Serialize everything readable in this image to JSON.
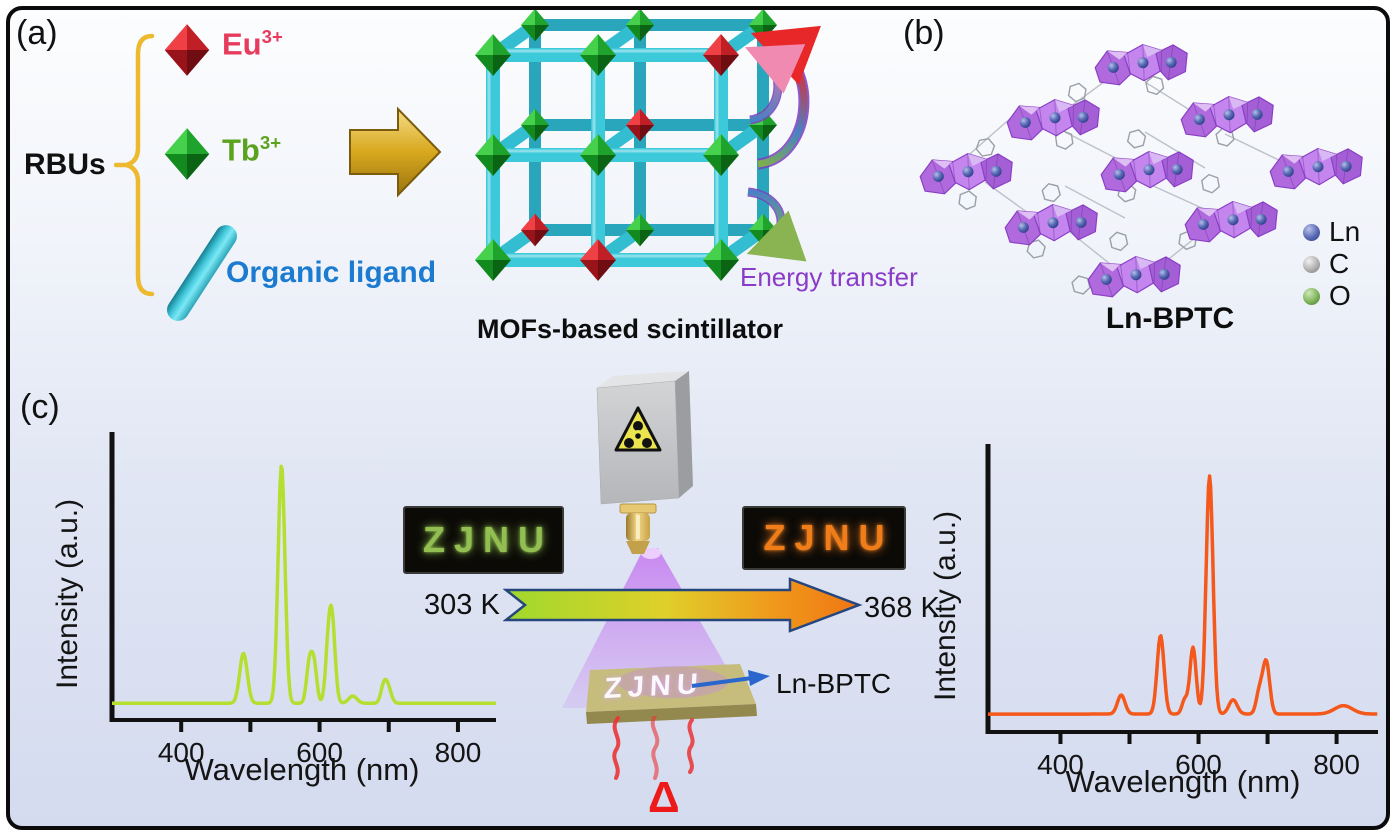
{
  "panels": {
    "a": {
      "label": "(a)",
      "rbus": "RBUs",
      "items": [
        {
          "symbol": "Eu",
          "charge": "3+",
          "color": "#e73b5e"
        },
        {
          "symbol": "Tb",
          "charge": "3+",
          "color": "#5ba31f"
        },
        {
          "label": "Organic ligand",
          "color": "#1a7bd0"
        }
      ],
      "scintillator_caption": "MOFs-based scintillator",
      "energy_transfer": "Energy transfer",
      "energy_transfer_color": "#8a3cc8"
    },
    "b": {
      "label": "(b)",
      "caption": "Ln-BPTC",
      "legend": [
        {
          "name": "Ln",
          "color": "#5868b4"
        },
        {
          "name": "C",
          "color": "#b9b9b9"
        },
        {
          "name": "O",
          "color": "#6fae4a"
        }
      ]
    },
    "c": {
      "label": "(c)",
      "temp_start": "303 K",
      "temp_end": "368 K",
      "photo_left": "ZJNU",
      "photo_left_color": "#93be52",
      "photo_right": "ZJNU",
      "photo_right_color": "#f07d18",
      "plate_text": "ZJNU",
      "sample_label": "Ln-BPTC",
      "heat_symbol": "Δ"
    }
  },
  "chart_data": [
    {
      "type": "line",
      "temperature": "303 K",
      "xlabel": "Wavelength (nm)",
      "ylabel": "Intensity (a.u.)",
      "xlim": [
        300,
        855
      ],
      "x_ticks_labeled": [
        400,
        600,
        800
      ],
      "x_ticks_all": [
        400,
        500,
        600,
        700,
        800
      ],
      "grid": false,
      "color": "#b5df30",
      "baseline": 0.02,
      "peaks": [
        {
          "center": 490,
          "height": 0.21,
          "width": 5.5
        },
        {
          "center": 545,
          "height": 1.0,
          "width": 5
        },
        {
          "center": 585,
          "height": 0.16,
          "width": 4
        },
        {
          "center": 592,
          "height": 0.16,
          "width": 4
        },
        {
          "center": 612,
          "height": 0.17,
          "width": 4
        },
        {
          "center": 618,
          "height": 0.34,
          "width": 4.5
        },
        {
          "center": 648,
          "height": 0.03,
          "width": 6
        },
        {
          "center": 692,
          "height": 0.05,
          "width": 4
        },
        {
          "center": 698,
          "height": 0.075,
          "width": 5
        }
      ]
    },
    {
      "type": "line",
      "temperature": "368 K",
      "xlabel": "Wavelength (nm)",
      "ylabel": "Intensity (a.u.)",
      "xlim": [
        295,
        860
      ],
      "x_ticks_labeled": [
        400,
        600,
        800
      ],
      "x_ticks_all": [
        400,
        500,
        600,
        700,
        800
      ],
      "grid": false,
      "color": "#f4581a",
      "baseline": 0.025,
      "peaks": [
        {
          "center": 488,
          "height": 0.08,
          "width": 5.5
        },
        {
          "center": 545,
          "height": 0.33,
          "width": 5
        },
        {
          "center": 580,
          "height": 0.06,
          "width": 4
        },
        {
          "center": 592,
          "height": 0.28,
          "width": 4.5
        },
        {
          "center": 616,
          "height": 1.0,
          "width": 5
        },
        {
          "center": 650,
          "height": 0.06,
          "width": 6
        },
        {
          "center": 688,
          "height": 0.09,
          "width": 4.5
        },
        {
          "center": 698,
          "height": 0.22,
          "width": 5
        },
        {
          "center": 810,
          "height": 0.035,
          "width": 13
        }
      ]
    }
  ]
}
